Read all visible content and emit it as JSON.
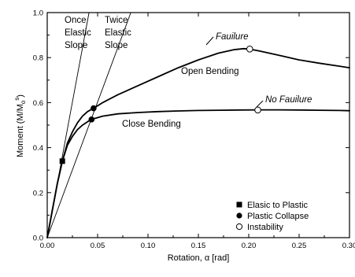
{
  "chart_data": {
    "type": "line",
    "xlabel": "Rotation, α [rad]",
    "ylabel": "Moment (M/M",
    "ylabel_sub": "o",
    "ylabel_sup": "s",
    "ylabel_end": ")",
    "xlim": [
      0,
      0.3
    ],
    "ylim": [
      0,
      1.0
    ],
    "xticks": [
      "0.00",
      "0.05",
      "0.10",
      "0.15",
      "0.20",
      "0.25",
      "0.30"
    ],
    "yticks": [
      "0.0",
      "0.2",
      "0.4",
      "0.6",
      "0.8",
      "1.0"
    ],
    "grid": false,
    "series": [
      {
        "name": "Open Bending",
        "x": [
          0,
          0.005,
          0.01,
          0.015,
          0.02,
          0.025,
          0.03,
          0.035,
          0.04,
          0.046,
          0.055,
          0.07,
          0.09,
          0.11,
          0.13,
          0.15,
          0.17,
          0.185,
          0.195,
          0.2,
          0.21,
          0.23,
          0.25,
          0.27,
          0.29,
          0.3
        ],
        "y": [
          0,
          0.12,
          0.24,
          0.34,
          0.42,
          0.47,
          0.51,
          0.54,
          0.56,
          0.575,
          0.6,
          0.635,
          0.675,
          0.715,
          0.755,
          0.79,
          0.82,
          0.835,
          0.84,
          0.838,
          0.83,
          0.81,
          0.79,
          0.775,
          0.762,
          0.755
        ]
      },
      {
        "name": "Close Bending",
        "x": [
          0,
          0.005,
          0.01,
          0.015,
          0.02,
          0.025,
          0.03,
          0.035,
          0.04,
          0.044,
          0.055,
          0.07,
          0.09,
          0.11,
          0.13,
          0.15,
          0.17,
          0.19,
          0.21,
          0.23,
          0.25,
          0.27,
          0.29,
          0.3
        ],
        "y": [
          0,
          0.12,
          0.24,
          0.34,
          0.41,
          0.45,
          0.48,
          0.5,
          0.515,
          0.525,
          0.54,
          0.55,
          0.556,
          0.56,
          0.563,
          0.565,
          0.566,
          0.567,
          0.568,
          0.568,
          0.567,
          0.566,
          0.565,
          0.564
        ]
      },
      {
        "name": "Once Elastic Slope",
        "x": [
          0,
          0.0415
        ],
        "y": [
          0,
          1.0
        ]
      },
      {
        "name": "Twice Elastic Slope",
        "x": [
          0,
          0.083
        ],
        "y": [
          0,
          1.0
        ]
      }
    ],
    "markers": {
      "elastic_to_plastic": [
        [
          0.015,
          0.34
        ]
      ],
      "plastic_collapse": [
        [
          0.046,
          0.575
        ],
        [
          0.044,
          0.525
        ]
      ],
      "instability": [
        [
          0.201,
          0.838
        ],
        [
          0.209,
          0.567
        ]
      ]
    },
    "annotations": {
      "once_line1": "Once",
      "once_line2": "Elastic",
      "once_line3": "Slope",
      "twice_line1": "Twice",
      "twice_line2": "Elastic",
      "twice_line3": "Slope",
      "open_bending": "Open Bending",
      "close_bending": "Close Bending",
      "failure": "Fauilure",
      "no_failure": "No Fauilure"
    },
    "legend": {
      "placement": "lower-right",
      "entries": [
        {
          "symbol": "filled-square",
          "label": "Elasic to Plastic"
        },
        {
          "symbol": "filled-circle",
          "label": "Plastic Collapse"
        },
        {
          "symbol": "open-circle",
          "label": "Instability"
        }
      ]
    }
  }
}
